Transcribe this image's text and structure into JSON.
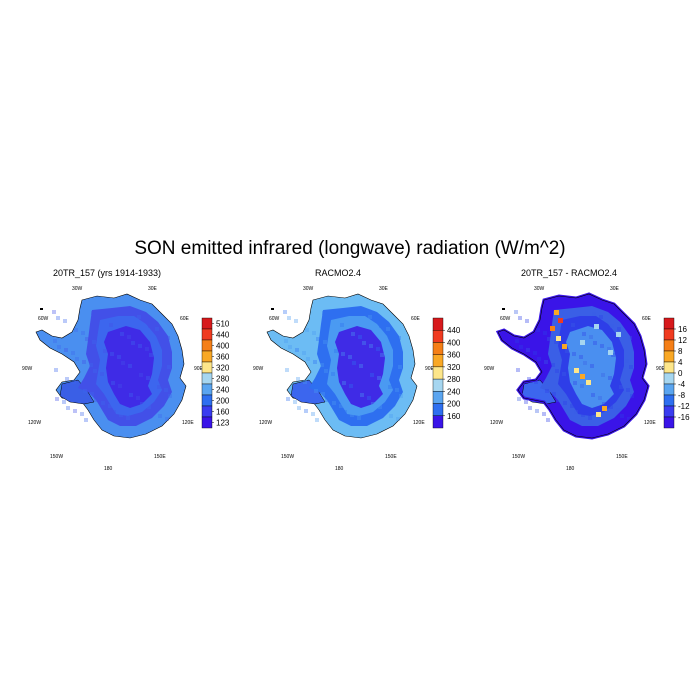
{
  "title": "SON emitted infrared (longwave) radiation (W/m^2)",
  "longitude_labels": [
    "30W",
    "30E",
    "60W",
    "60E",
    "90W",
    "90E",
    "120W",
    "120E",
    "150W",
    "150E",
    "180"
  ],
  "panels": [
    {
      "title": "20TR_157 (yrs 1914-1933)",
      "colorbar": {
        "labels": [
          "510",
          "440",
          "400",
          "360",
          "320",
          "280",
          "240",
          "200",
          "160",
          "123"
        ],
        "colors": [
          "#d7191c",
          "#f03b20",
          "#f57f17",
          "#f9a825",
          "#fde68a",
          "#a6d6f0",
          "#5aa5f0",
          "#2e6ff0",
          "#3a3cf0",
          "#3a14e8"
        ]
      },
      "palette": {
        "interior": "#3f2be6",
        "ring1": "#4250e8",
        "ring2": "#3c66ee",
        "coast": "#4a8ff0",
        "shelf": "#3a5fe6"
      }
    },
    {
      "title": "RACMO2.4",
      "colorbar": {
        "labels": [
          "440",
          "400",
          "360",
          "320",
          "280",
          "240",
          "200",
          "160"
        ],
        "colors": [
          "#d7191c",
          "#f03b20",
          "#f57f17",
          "#f9a825",
          "#fde68a",
          "#a6d6f0",
          "#5aa5f0",
          "#2e6ff0",
          "#3a14e8"
        ]
      },
      "palette": {
        "interior": "#3f2be6",
        "ring1": "#2e6ff0",
        "ring2": "#4a9af2",
        "coast": "#6cbcf4",
        "shelf": "#3c66ee"
      }
    },
    {
      "title": "20TR_157 - RACMO2.4",
      "colorbar": {
        "labels": [
          "16",
          "12",
          "8",
          "4",
          "0",
          "-4",
          "-8",
          "-12",
          "-16"
        ],
        "colors": [
          "#d7191c",
          "#f03b20",
          "#f57f17",
          "#f9a825",
          "#fde68a",
          "#a6d6f0",
          "#5aa5f0",
          "#2e6ff0",
          "#3a3cf0",
          "#3a14e8"
        ]
      },
      "palette": {
        "interior": "#4a8ff0",
        "ring1": "#3a5fe6",
        "ring2": "#2e3ee8",
        "coast": "#3a14e8",
        "shelf": "#3c66ee"
      }
    }
  ]
}
